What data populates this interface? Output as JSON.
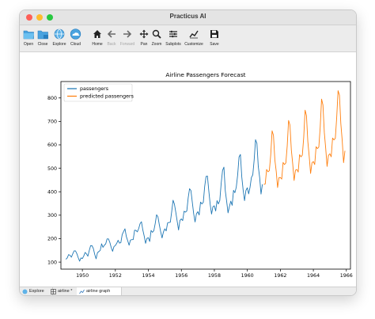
{
  "window": {
    "title": "Practicus AI"
  },
  "toolbar": {
    "left": [
      {
        "icon": "folder-open-icon",
        "label": "Open"
      },
      {
        "icon": "folder-close-icon",
        "label": "Close"
      },
      {
        "icon": "explore-icon",
        "label": "Explore"
      },
      {
        "icon": "cloud-icon",
        "label": "Cloud"
      }
    ],
    "plot": [
      {
        "icon": "home-icon",
        "label": "Home",
        "enabled": true
      },
      {
        "icon": "back-arrow-icon",
        "label": "Back",
        "enabled": false
      },
      {
        "icon": "forward-arrow-icon",
        "label": "Forward",
        "enabled": false
      },
      {
        "icon": "pan-icon",
        "label": "Pan",
        "enabled": true
      },
      {
        "icon": "zoom-icon",
        "label": "Zoom",
        "enabled": true
      },
      {
        "icon": "subplots-icon",
        "label": "Subplots",
        "enabled": true
      },
      {
        "icon": "customize-icon",
        "label": "Customize",
        "enabled": true
      },
      {
        "icon": "save-icon",
        "label": "Save",
        "enabled": true
      }
    ]
  },
  "tabs": [
    {
      "icon": "explore-icon",
      "label": "Explore"
    },
    {
      "icon": "table-icon",
      "label": "airline *"
    },
    {
      "icon": "chart-icon",
      "label": "airline graph"
    }
  ],
  "colors": {
    "passengers": "#1f77b4",
    "predicted": "#ff7f0e"
  },
  "chart_data": {
    "type": "line",
    "title": "Airline Passengers Forecast",
    "xlabel": "",
    "ylabel": "",
    "xlim": [
      1948.7,
      1966.25
    ],
    "ylim": [
      70,
      870
    ],
    "xticks": [
      1950,
      1952,
      1954,
      1956,
      1958,
      1960,
      1962,
      1964,
      1966
    ],
    "yticks": [
      100,
      200,
      300,
      400,
      500,
      600,
      700,
      800
    ],
    "grid": false,
    "legend": "top-left",
    "series": [
      {
        "name": "passengers",
        "x_start": 1949.0,
        "x_step": 0.0833,
        "values": [
          112,
          118,
          132,
          129,
          121,
          135,
          148,
          148,
          136,
          119,
          104,
          118,
          115,
          126,
          141,
          135,
          125,
          149,
          170,
          170,
          158,
          133,
          114,
          140,
          145,
          150,
          178,
          163,
          172,
          178,
          199,
          199,
          184,
          162,
          146,
          166,
          171,
          180,
          193,
          181,
          183,
          218,
          230,
          242,
          209,
          191,
          172,
          194,
          196,
          196,
          236,
          235,
          229,
          243,
          264,
          272,
          237,
          211,
          180,
          201,
          204,
          188,
          235,
          227,
          234,
          264,
          302,
          293,
          259,
          229,
          203,
          229,
          242,
          233,
          267,
          269,
          270,
          315,
          364,
          347,
          312,
          274,
          237,
          278,
          284,
          277,
          317,
          313,
          318,
          374,
          413,
          405,
          355,
          306,
          271,
          306,
          315,
          301,
          356,
          348,
          355,
          422,
          465,
          467,
          404,
          347,
          305,
          336,
          340,
          318,
          362,
          348,
          363,
          435,
          491,
          505,
          404,
          359,
          310,
          337,
          360,
          342,
          406,
          396,
          420,
          472,
          548,
          559,
          463,
          407,
          362,
          405,
          417,
          391,
          419,
          461,
          472,
          535,
          622,
          606,
          508,
          461,
          390,
          432
        ]
      },
      {
        "name": "predicted passengers",
        "x_start": 1961.0,
        "x_step": 0.0833,
        "values": [
          431,
          433,
          495,
          485,
          490,
          557,
          660,
          640,
          536,
          487,
          418,
          460,
          461,
          454,
          525,
          516,
          523,
          596,
          704,
          684,
          578,
          519,
          448,
          492,
          495,
          484,
          558,
          549,
          556,
          631,
          748,
          725,
          614,
          551,
          478,
          523,
          529,
          516,
          592,
          584,
          591,
          675,
          795,
          770,
          652,
          585,
          508,
          555,
          562,
          549,
          629,
          621,
          628,
          716,
          831,
          812,
          691,
          620,
          524,
          575
        ]
      }
    ]
  }
}
